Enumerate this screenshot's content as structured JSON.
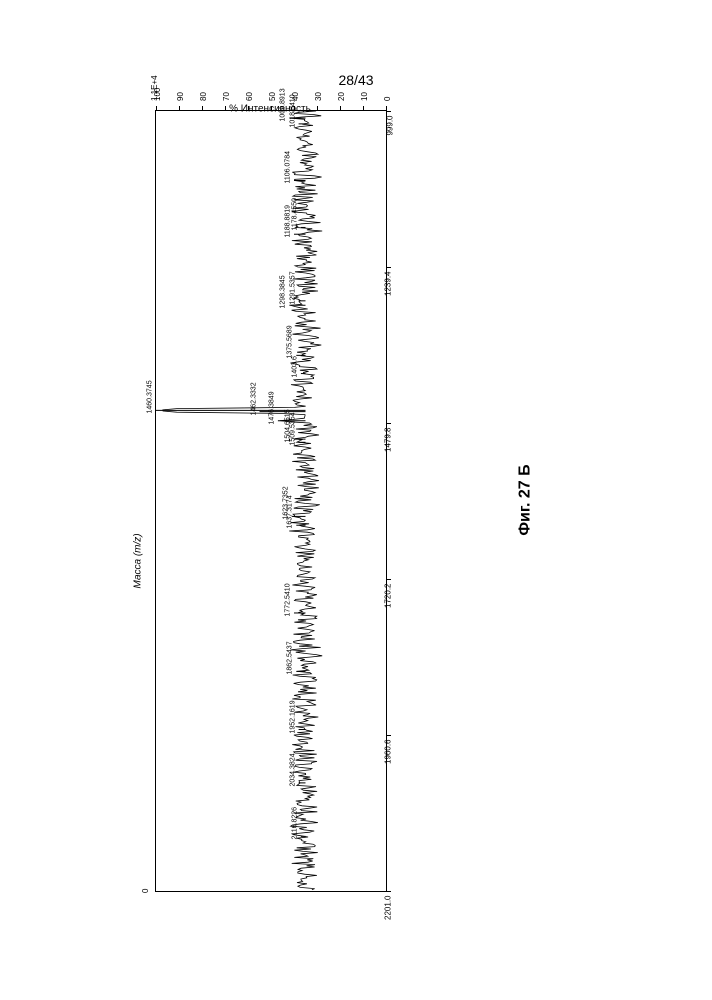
{
  "page_number": "28/43",
  "figure_caption": "Фиг. 27 Б",
  "chart": {
    "type": "mass-spectrum",
    "x_axis": {
      "title": "Масса (m/z)",
      "min": 999.0,
      "max": 2201.0,
      "ticks": [
        999.0,
        1239.4,
        1479.8,
        1720.2,
        1960.6,
        2201.0
      ],
      "tick_labels": [
        "999.0",
        "1239.4",
        "1479.8",
        "1720.2",
        "1960.6",
        "2201.0"
      ]
    },
    "y_axis": {
      "title": "% Интенсивность",
      "min": 0,
      "max": 100,
      "ticks": [
        0,
        10,
        20,
        30,
        40,
        50,
        60,
        70,
        80,
        90,
        100
      ],
      "secondary_top": "1.1E+4",
      "secondary_bottom": "0"
    },
    "baseline_intensity": 35,
    "noise_amplitude": 5,
    "peaks": [
      {
        "mz": 1009.8913,
        "intensity": 42,
        "label": "1009.8913"
      },
      {
        "mz": 1018.841,
        "intensity": 38,
        "label": "1018.8410"
      },
      {
        "mz": 1106.0784,
        "intensity": 40,
        "label": "1106.0784"
      },
      {
        "mz": 1178.455,
        "intensity": 37,
        "label": "1178.4550"
      },
      {
        "mz": 1188.8819,
        "intensity": 40,
        "label": "1188.8819"
      },
      {
        "mz": 1291.5357,
        "intensity": 38,
        "label": "1291.5357"
      },
      {
        "mz": 1298.3845,
        "intensity": 42,
        "label": "1298.3845"
      },
      {
        "mz": 1375.5689,
        "intensity": 39,
        "label": "1375.5689"
      },
      {
        "mz": 1403.6,
        "intensity": 37,
        "label": "1403.6"
      },
      {
        "mz": 1460.3745,
        "intensity": 100,
        "label": "1460.3745"
      },
      {
        "mz": 1462.3332,
        "intensity": 55,
        "label": "1462.3332"
      },
      {
        "mz": 1476.3849,
        "intensity": 47,
        "label": "1476.3849"
      },
      {
        "mz": 1504.6515,
        "intensity": 40,
        "label": "1504.6515"
      },
      {
        "mz": 1509.5354,
        "intensity": 38,
        "label": "1509.5354"
      },
      {
        "mz": 1623.7352,
        "intensity": 41,
        "label": "1623.7352"
      },
      {
        "mz": 1637.3174,
        "intensity": 39,
        "label": "1637.3174"
      },
      {
        "mz": 1772.541,
        "intensity": 40,
        "label": "1772.5410"
      },
      {
        "mz": 1862.5437,
        "intensity": 39,
        "label": "1862.5437"
      },
      {
        "mz": 1952.1619,
        "intensity": 38,
        "label": "1952.1619"
      },
      {
        "mz": 2034.3824,
        "intensity": 38,
        "label": "2034.3824"
      },
      {
        "mz": 2116.8226,
        "intensity": 37,
        "label": "2116.8226"
      }
    ],
    "colors": {
      "line": "#000000",
      "background": "#ffffff",
      "axis": "#000000",
      "text": "#000000"
    },
    "fonts": {
      "axis_label_size": 10,
      "tick_label_size": 8,
      "peak_label_size": 7
    }
  }
}
